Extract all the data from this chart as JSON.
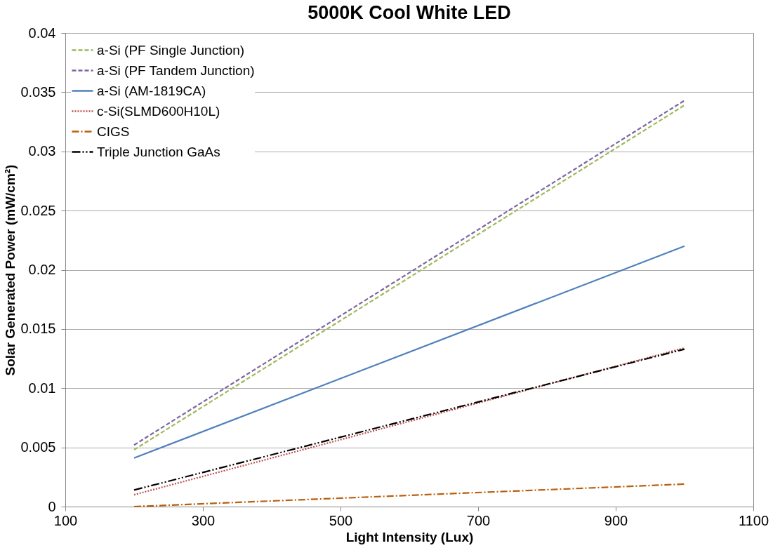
{
  "chart_data": {
    "type": "line",
    "title": "5000K Cool White LED",
    "xlabel": "Light Intensity (Lux)",
    "ylabel": "Solar Generated Power (mW/cm²)",
    "x": [
      200,
      1000
    ],
    "series": [
      {
        "name": "a-Si (PF Single Junction)",
        "color": "#9bbb59",
        "values": [
          0.0048,
          0.0339
        ],
        "line_style": "dashed"
      },
      {
        "name": "a-Si (PF Tandem Junction)",
        "color": "#8064a2",
        "values": [
          0.0052,
          0.0343
        ],
        "line_style": "dashed"
      },
      {
        "name": "a-Si (AM-1819CA)",
        "color": "#4f81bd",
        "values": [
          0.0041,
          0.022
        ],
        "line_style": "solid"
      },
      {
        "name": "c-Si(SLMD600H10L)",
        "color": "#c0504d",
        "values": [
          0.001,
          0.0134
        ],
        "line_style": "dotted"
      },
      {
        "name": "CIGS",
        "color": "#b8600f",
        "values": [
          0,
          0.0019
        ],
        "line_style": "dashdot"
      },
      {
        "name": "Triple Junction GaAs",
        "color": "#000000",
        "values": [
          0.0014,
          0.0133
        ],
        "line_style": "dashdotdot"
      }
    ],
    "xlim": [
      100,
      1100
    ],
    "xticks": [
      100,
      300,
      500,
      700,
      900,
      1100
    ],
    "ylim": [
      0,
      0.04
    ],
    "yticks": [
      0,
      0.005,
      0.01,
      0.015,
      0.02,
      0.025,
      0.03,
      0.035,
      0.04
    ],
    "grid": "y",
    "legend": "top left",
    "marker": "none"
  }
}
